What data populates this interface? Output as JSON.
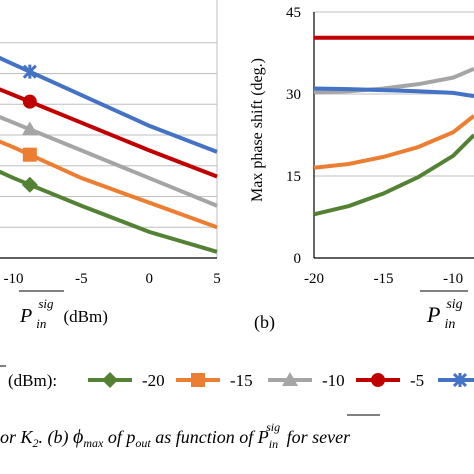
{
  "chart_data": [
    {
      "type": "line",
      "panel": "a",
      "title": "",
      "xlabel": "P_in^sig (dBm)",
      "xlabel_parts": {
        "base": "P",
        "sub": "in",
        "sup": "sig",
        "unit": "(dBm)"
      },
      "ylabel": "",
      "x": [
        -15,
        -10,
        -5,
        0,
        5
      ],
      "xticks": [
        "-10",
        "-5",
        "0",
        "5"
      ],
      "xlim": [
        -11,
        5
      ],
      "ylim": [
        0,
        8
      ],
      "grid": true,
      "series": [
        {
          "name": "-20",
          "color": "#548235",
          "marker": "diamond",
          "values": [
            3.6,
            2.6,
            1.7,
            0.85,
            0.2
          ]
        },
        {
          "name": "-15",
          "color": "#ed7d31",
          "marker": "square",
          "values": [
            4.5,
            3.6,
            2.6,
            1.8,
            1.0
          ]
        },
        {
          "name": "-10",
          "color": "#a5a5a5",
          "marker": "triangle",
          "values": [
            5.3,
            4.4,
            3.5,
            2.6,
            1.7
          ]
        },
        {
          "name": "-5",
          "color": "#c00000",
          "marker": "circle",
          "values": [
            6.2,
            5.3,
            4.4,
            3.5,
            2.65
          ]
        },
        {
          "name": "",
          "color": "#4472c4",
          "marker": "star",
          "values": [
            7.3,
            6.3,
            5.3,
            4.3,
            3.45
          ]
        }
      ],
      "marker_x": -8.8
    },
    {
      "type": "line",
      "panel": "b",
      "title": "",
      "xlabel": "P_in^sig",
      "xlabel_parts": {
        "base": "P",
        "sub": "in",
        "sup": "sig"
      },
      "ylabel": "Max phase shift (deg.)",
      "x": [
        -20,
        -17.5,
        -15,
        -12.5,
        -10,
        -8.5
      ],
      "xticks": [
        "-20",
        "-15",
        "-10"
      ],
      "yticks": [
        "0",
        "15",
        "30",
        "45"
      ],
      "xlim": [
        -20,
        -8.5
      ],
      "ylim": [
        0,
        45
      ],
      "grid": true,
      "series": [
        {
          "name": "-20",
          "color": "#548235",
          "values": [
            8.0,
            9.5,
            11.8,
            14.8,
            18.7,
            22.5
          ]
        },
        {
          "name": "-15",
          "color": "#ed7d31",
          "values": [
            16.5,
            17.2,
            18.5,
            20.3,
            23.0,
            26.0
          ]
        },
        {
          "name": "-10",
          "color": "#a5a5a5",
          "values": [
            30.3,
            30.5,
            31.0,
            31.8,
            33.0,
            34.6
          ]
        },
        {
          "name": "-5",
          "color": "#c00000",
          "values": [
            40.3,
            40.3,
            40.3,
            40.3,
            40.3,
            40.3
          ]
        },
        {
          "name": "",
          "color": "#4472c4",
          "values": [
            31.0,
            30.9,
            30.7,
            30.5,
            30.2,
            29.6
          ]
        }
      ]
    }
  ],
  "panel_b_label": "(b)",
  "legend": {
    "title_fragment": "(dBm):",
    "entries": [
      {
        "label": "-20",
        "color": "#548235",
        "marker": "diamond"
      },
      {
        "label": "-15",
        "color": "#ed7d31",
        "marker": "square"
      },
      {
        "label": "-10",
        "color": "#a5a5a5",
        "marker": "triangle"
      },
      {
        "label": "-5",
        "color": "#c00000",
        "marker": "circle"
      },
      {
        "label": "",
        "color": "#4472c4",
        "marker": "star"
      }
    ]
  },
  "caption": {
    "part1": "or K",
    "k_sub": "2",
    "part2": ". (b) ",
    "phi": "ϕ",
    "phi_sub": "max",
    "part3": " of ",
    "p": "p",
    "p_sub": "out",
    "part4": " as function of ",
    "P": "P",
    "P_sub": "in",
    "P_sup": "sig",
    "part5": " for sever"
  }
}
